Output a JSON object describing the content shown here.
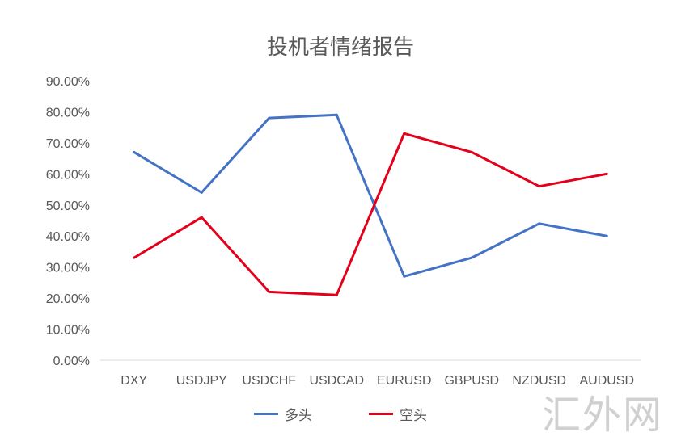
{
  "watermark_text": "汇外网",
  "chart_data": {
    "type": "line",
    "title": "投机者情绪报告",
    "categories": [
      "DXY",
      "USDJPY",
      "USDCHF",
      "USDCAD",
      "EURUSD",
      "GBPUSD",
      "NZDUSD",
      "AUDUSD"
    ],
    "yticks": [
      "0.00%",
      "10.00%",
      "20.00%",
      "30.00%",
      "40.00%",
      "50.00%",
      "60.00%",
      "70.00%",
      "80.00%",
      "90.00%"
    ],
    "ylim": [
      0,
      90
    ],
    "grid": false,
    "legend_position": "bottom",
    "series": [
      {
        "name": "多头",
        "color": "#4472C4",
        "values": [
          67,
          54,
          78,
          79,
          27,
          33,
          44,
          40
        ]
      },
      {
        "name": "空头",
        "color": "#E3001B",
        "values": [
          33,
          46,
          22,
          21,
          73,
          67,
          56,
          60
        ]
      }
    ]
  }
}
